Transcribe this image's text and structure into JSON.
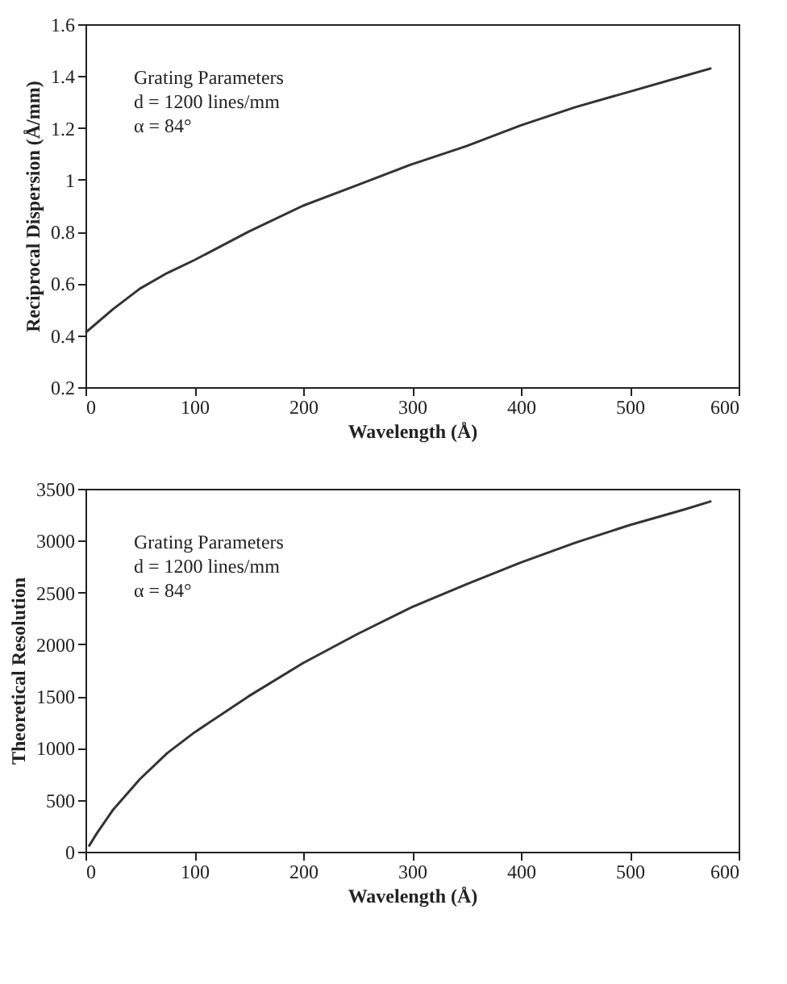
{
  "chart_data": [
    {
      "type": "line",
      "xlabel": "Wavelength (Å)",
      "ylabel": "Reciprocal Dispersion (Å/mm)",
      "annotations": [
        "Grating Parameters",
        "d = 1200 lines/mm",
        "α = 84°"
      ],
      "x": [
        0,
        25,
        50,
        75,
        100,
        150,
        200,
        250,
        300,
        350,
        400,
        450,
        500,
        550,
        575
      ],
      "series": [
        {
          "color": "#333333",
          "values": [
            0.41,
            0.5,
            0.58,
            0.64,
            0.69,
            0.8,
            0.9,
            0.98,
            1.06,
            1.13,
            1.21,
            1.28,
            1.34,
            1.4,
            1.43
          ]
        }
      ],
      "xlim": [
        0,
        600
      ],
      "xticks": [
        0,
        100,
        200,
        300,
        400,
        500,
        600
      ],
      "ylim": [
        0.2,
        1.6
      ],
      "yticks": [
        0.2,
        0.4,
        0.6,
        0.8,
        1,
        1.2,
        1.4,
        1.6
      ],
      "grid": false,
      "legend": false
    },
    {
      "type": "line",
      "xlabel": "Wavelength (Å)",
      "ylabel": "Theoretical Resolution",
      "annotations": [
        "Grating Parameters",
        "d = 1200 lines/mm",
        "α = 84°"
      ],
      "x": [
        3,
        10,
        25,
        50,
        75,
        100,
        150,
        200,
        250,
        300,
        350,
        400,
        450,
        500,
        550,
        575
      ],
      "series": [
        {
          "color": "#333333",
          "values": [
            50,
            170,
            400,
            700,
            950,
            1150,
            1500,
            1820,
            2100,
            2360,
            2580,
            2790,
            2980,
            3150,
            3300,
            3380
          ]
        }
      ],
      "xlim": [
        0,
        600
      ],
      "xticks": [
        0,
        100,
        200,
        300,
        400,
        500,
        600
      ],
      "ylim": [
        0,
        3500
      ],
      "yticks": [
        0,
        500,
        1000,
        1500,
        2000,
        2500,
        3000,
        3500
      ],
      "grid": false,
      "legend": false
    }
  ]
}
